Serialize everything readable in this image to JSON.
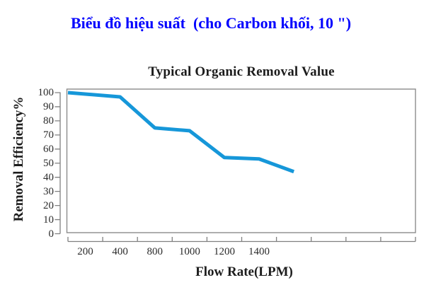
{
  "page": {
    "heading": "Biểu đồ hiệu suất  (cho Carbon khối, 10 \")",
    "heading_color": "#0202fe",
    "background": "#ffffff"
  },
  "chart_data": {
    "type": "line",
    "title": "Typical Organic Removal Value",
    "xlabel": "Flow Rate(LPM)",
    "ylabel": "Removal Efficiency%",
    "ylim": [
      0,
      100
    ],
    "y_ticks": [
      100,
      90,
      80,
      70,
      60,
      50,
      40,
      30,
      20,
      10,
      0
    ],
    "x_tick_labels": [
      "200",
      "400",
      "800",
      "1000",
      "1200",
      "1400"
    ],
    "x_axis_bin_count": 10,
    "grid": false,
    "legend_position": "none",
    "line_color": "#1697d9",
    "axis_color": "#808080",
    "text_color": "#1c1c1c",
    "series": [
      {
        "name": "Removal Efficiency%",
        "x": [
          100,
          400,
          800,
          1000,
          1200,
          1400,
          1600
        ],
        "x_slots": [
          0,
          1.5,
          2.5,
          3.5,
          4.5,
          5.5,
          6.5
        ],
        "values": [
          100,
          97,
          75,
          73,
          54,
          53,
          44
        ]
      }
    ]
  }
}
